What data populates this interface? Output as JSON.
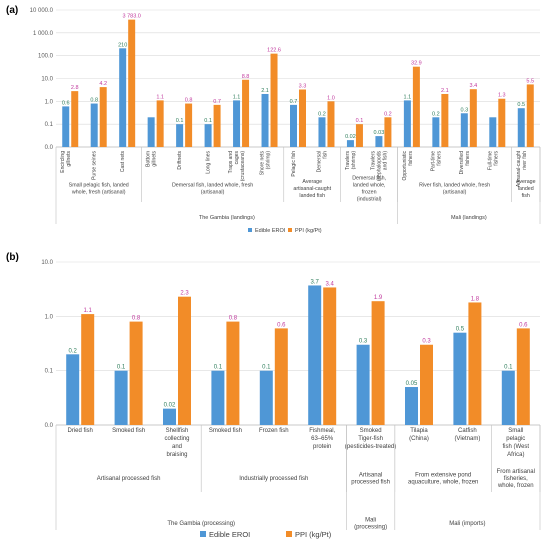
{
  "colors": {
    "edible": "#4f97d6",
    "ppi": "#f28c28",
    "edible_label": "#2e7d5b",
    "ppi_label": "#c0399d",
    "grid": "#d9d9d9",
    "axis": "#bfbfbf"
  },
  "chart_data": [
    {
      "panel": "(a)",
      "type": "bar",
      "log_scale": true,
      "ylim": [
        0.01,
        10000
      ],
      "y_ticks": [
        "0.0",
        "0.1",
        "1.0",
        "10.0",
        "100.0",
        "1 000.0",
        "10 000.0"
      ],
      "categories": [
        "Encircling gillnets",
        "Purse seines",
        "Cast nets",
        "Bottom gillnets",
        "Driftnets",
        "Long lines",
        "Traps and cages (crustaceans)",
        "Shore nets (shrimp)",
        "Pelagic fish",
        "Demersal fish",
        "Trawlers (shrimp)",
        "Trawlers (cephalopods and fish)",
        "Opportunistic fishers",
        "Part-time fishers",
        "Diversified fishers",
        "Full-time fishers",
        "Artisanal-caught river fish"
      ],
      "series": [
        {
          "name": "Edible EROI",
          "values": [
            0.6,
            0.8,
            210,
            0.2,
            0.1,
            0.1,
            1.1,
            2.1,
            0.7,
            0.2,
            0.02,
            0.03,
            1.1,
            0.2,
            0.3,
            0.2,
            0.5
          ],
          "labels": [
            "0.6",
            "0.8",
            "210",
            "",
            "0.1",
            "0.1",
            "1.1",
            "2.1",
            "0.7",
            "0.2",
            "0.02",
            "0.03",
            "1.1",
            "0.2",
            "0.3",
            "",
            "0.5"
          ]
        },
        {
          "name": "PPI (kg/Pt)",
          "values": [
            2.8,
            4.2,
            3783,
            1.1,
            0.8,
            0.7,
            8.8,
            122.6,
            3.3,
            1.0,
            0.1,
            0.2,
            32.9,
            2.1,
            3.4,
            1.3,
            5.5
          ],
          "labels": [
            "2.8",
            "4.2",
            "3 783.0",
            "1.1",
            "0.8",
            "0.7",
            "8.8",
            "122.6",
            "3.3",
            "1.0",
            "0.1",
            "0.2",
            "32.9",
            "2.1",
            "3.4",
            "1.3",
            "5.5"
          ]
        }
      ],
      "groups": [
        {
          "label": "Small pelagic fish, landed whole, fresh (artisanal)",
          "start": 0,
          "end": 2
        },
        {
          "label": "Demersal fish, landed whole, fresh (artisanal)",
          "start": 3,
          "end": 7
        },
        {
          "label": "Average artisanal-caught landed fish",
          "start": 8,
          "end": 9
        },
        {
          "label": "Demersal fish, landed whole, frozen (industrial)",
          "start": 10,
          "end": 11
        },
        {
          "label": "River fish, landed whole, fresh (artisanal)",
          "start": 12,
          "end": 15
        },
        {
          "label": "Average landed fish",
          "start": 16,
          "end": 16
        }
      ],
      "regions": [
        {
          "label": "The Gambia (landings)",
          "start": 0,
          "end": 11
        },
        {
          "label": "Mali (landings)",
          "start": 12,
          "end": 16
        }
      ],
      "legend": [
        "Edible EROI",
        "PPI (kg/Pt)"
      ]
    },
    {
      "panel": "(b)",
      "type": "bar",
      "log_scale": true,
      "ylim": [
        0.01,
        10
      ],
      "y_ticks": [
        "0.0",
        "0.1",
        "1.0",
        "10.0"
      ],
      "categories": [
        "Dried fish",
        "Smoked fish",
        "Shellfish collecting and braising",
        "Smoked fish",
        "Frozen fish",
        "Fishmeal, 63–65% protein",
        "Smoked Tiger-fish (pesticides-treated)",
        "Tilapia (China)",
        "Catfish (Vietnam)",
        "Small pelagic fish (West Africa)"
      ],
      "series": [
        {
          "name": "Edible EROI",
          "values": [
            0.2,
            0.1,
            0.02,
            0.1,
            0.1,
            3.7,
            0.3,
            0.05,
            0.5,
            0.1
          ],
          "labels": [
            "0.2",
            "0.1",
            "0.02",
            "0.1",
            "0.1",
            "3.7",
            "0.3",
            "0.05",
            "0.5",
            "0.1"
          ]
        },
        {
          "name": "PPI (kg/Pt)",
          "values": [
            1.1,
            0.8,
            2.3,
            0.8,
            0.6,
            3.4,
            1.9,
            0.3,
            1.8,
            0.6
          ],
          "labels": [
            "1.1",
            "0.8",
            "2.3",
            "0.8",
            "0.6",
            "3.4",
            "1.9",
            "0.3",
            "1.8",
            "0.6"
          ]
        }
      ],
      "groups": [
        {
          "label": "Artisanal processed fish",
          "start": 0,
          "end": 2
        },
        {
          "label": "Industrially processed fish",
          "start": 3,
          "end": 5
        },
        {
          "label": "Artisanal processed fish",
          "start": 6,
          "end": 6
        },
        {
          "label": "From extensive pond aquaculture, whole, frozen",
          "start": 7,
          "end": 8
        },
        {
          "label": "From artisanal fisheries, whole, frozen",
          "start": 9,
          "end": 9
        }
      ],
      "regions": [
        {
          "label": "The Gambia (processing)",
          "start": 0,
          "end": 5
        },
        {
          "label": "Mali (processing)",
          "start": 6,
          "end": 6
        },
        {
          "label": "Mali (imports)",
          "start": 7,
          "end": 9
        }
      ],
      "legend": [
        "Edible EROI",
        "PPI (kg/Pt)"
      ]
    }
  ]
}
